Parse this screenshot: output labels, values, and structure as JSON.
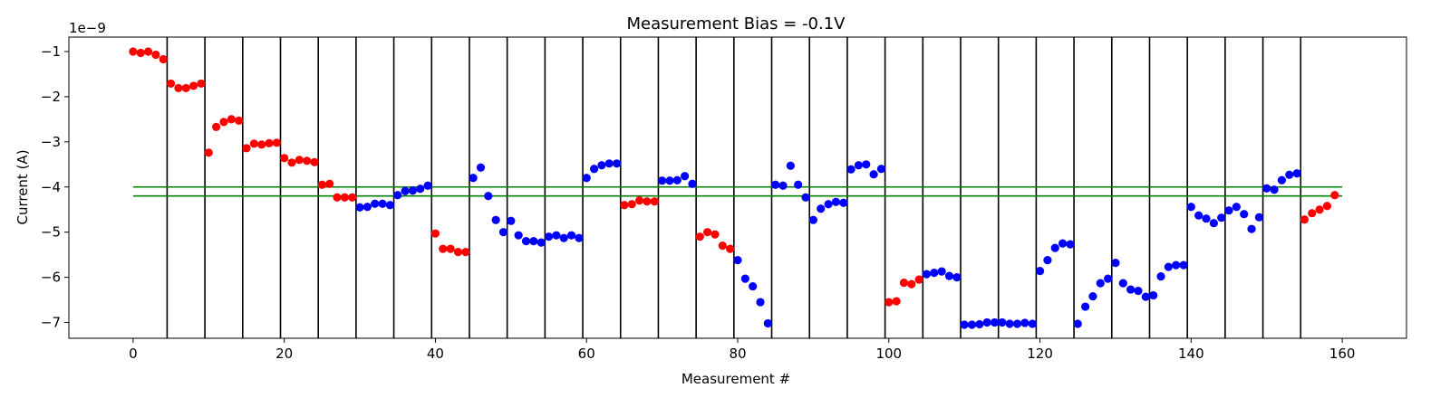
{
  "chart_data": {
    "type": "scatter",
    "title": "Measurement Bias = -0.1V",
    "xlabel": "Measurement #",
    "ylabel": "Current (A)",
    "y_scale_label": "1e−9",
    "xlim": [
      -8.5,
      168.5
    ],
    "ylim": [
      -7.35,
      -0.68
    ],
    "x_ticks": [
      0,
      20,
      40,
      60,
      80,
      100,
      120,
      140,
      160
    ],
    "x_tick_labels": [
      "0",
      "20",
      "40",
      "60",
      "80",
      "100",
      "120",
      "140",
      "160"
    ],
    "y_ticks": [
      -1,
      -2,
      -3,
      -4,
      -5,
      -6,
      -7
    ],
    "y_tick_labels": [
      "−1",
      "−2",
      "−3",
      "−4",
      "−5",
      "−6",
      "−7"
    ],
    "grid": false,
    "separators_x": [
      4.5,
      9.5,
      14.5,
      19.5,
      24.5,
      29.5,
      34.5,
      39.5,
      44.5,
      49.5,
      54.5,
      59.5,
      64.5,
      69.5,
      74.5,
      79.5,
      84.5,
      89.5,
      94.5,
      99.5,
      104.5,
      109.5,
      114.5,
      119.5,
      124.5,
      129.5,
      134.5,
      139.5,
      144.5,
      149.5,
      154.5
    ],
    "reference_lines": [
      {
        "y": -4.0,
        "x_range": [
          0,
          160
        ],
        "color": "#008000"
      },
      {
        "y": -4.2,
        "x_range": [
          0,
          160
        ],
        "color": "#008000"
      }
    ],
    "colors": {
      "red": "#ff0000",
      "blue": "#0000ff",
      "separator": "#000000"
    },
    "series": [
      {
        "color": "red",
        "x": [
          0,
          1,
          2,
          3,
          4
        ],
        "y": [
          -1.0,
          -1.03,
          -1.0,
          -1.07,
          -1.17
        ]
      },
      {
        "color": "red",
        "x": [
          5,
          6,
          7,
          8,
          9
        ],
        "y": [
          -1.71,
          -1.81,
          -1.81,
          -1.76,
          -1.71
        ]
      },
      {
        "color": "red",
        "x": [
          10,
          11,
          12,
          13,
          14
        ],
        "y": [
          -3.24,
          -2.67,
          -2.56,
          -2.5,
          -2.53
        ]
      },
      {
        "color": "red",
        "x": [
          15,
          16,
          17,
          18,
          19
        ],
        "y": [
          -3.14,
          -3.04,
          -3.06,
          -3.03,
          -3.02
        ]
      },
      {
        "color": "red",
        "x": [
          20,
          21,
          22,
          23,
          24
        ],
        "y": [
          -3.36,
          -3.46,
          -3.4,
          -3.42,
          -3.45
        ]
      },
      {
        "color": "red",
        "x": [
          25,
          26,
          27,
          28,
          29
        ],
        "y": [
          -3.95,
          -3.93,
          -4.23,
          -4.23,
          -4.23
        ]
      },
      {
        "color": "blue",
        "x": [
          30,
          31,
          32,
          33,
          34
        ],
        "y": [
          -4.45,
          -4.44,
          -4.37,
          -4.37,
          -4.4
        ]
      },
      {
        "color": "blue",
        "x": [
          35,
          36,
          37,
          38,
          39
        ],
        "y": [
          -4.18,
          -4.09,
          -4.08,
          -4.04,
          -3.97
        ]
      },
      {
        "color": "red",
        "x": [
          40,
          41,
          42,
          43,
          44
        ],
        "y": [
          -5.03,
          -5.37,
          -5.37,
          -5.44,
          -5.44
        ]
      },
      {
        "color": "blue",
        "x": [
          45,
          46,
          47,
          48,
          49
        ],
        "y": [
          -3.8,
          -3.57,
          -4.2,
          -4.73,
          -5.0
        ]
      },
      {
        "color": "blue",
        "x": [
          50,
          51,
          52,
          53,
          54
        ],
        "y": [
          -4.75,
          -5.07,
          -5.2,
          -5.2,
          -5.23
        ]
      },
      {
        "color": "blue",
        "x": [
          55,
          56,
          57,
          58,
          59
        ],
        "y": [
          -5.1,
          -5.07,
          -5.13,
          -5.07,
          -5.13
        ]
      },
      {
        "color": "blue",
        "x": [
          60,
          61,
          62,
          63,
          64
        ],
        "y": [
          -3.8,
          -3.6,
          -3.52,
          -3.48,
          -3.48
        ]
      },
      {
        "color": "red",
        "x": [
          65,
          66,
          67,
          68,
          69
        ],
        "y": [
          -4.4,
          -4.38,
          -4.3,
          -4.32,
          -4.32
        ]
      },
      {
        "color": "blue",
        "x": [
          70,
          71,
          72,
          73,
          74
        ],
        "y": [
          -3.86,
          -3.86,
          -3.85,
          -3.76,
          -3.93
        ]
      },
      {
        "color": "red",
        "x": [
          75,
          76,
          77,
          78,
          79
        ],
        "y": [
          -5.1,
          -5.0,
          -5.05,
          -5.3,
          -5.37
        ]
      },
      {
        "color": "blue",
        "x": [
          80,
          81,
          82,
          83,
          84
        ],
        "y": [
          -5.62,
          -6.03,
          -6.2,
          -6.55,
          -7.02
        ]
      },
      {
        "color": "blue",
        "x": [
          85,
          86,
          87,
          88,
          89
        ],
        "y": [
          -3.95,
          -3.97,
          -3.53,
          -3.95,
          -4.23
        ]
      },
      {
        "color": "blue",
        "x": [
          90,
          91,
          92,
          93,
          94
        ],
        "y": [
          -4.73,
          -4.48,
          -4.38,
          -4.33,
          -4.35
        ]
      },
      {
        "color": "blue",
        "x": [
          95,
          96,
          97,
          98,
          99
        ],
        "y": [
          -3.61,
          -3.52,
          -3.5,
          -3.72,
          -3.6
        ]
      },
      {
        "color": "red",
        "x": [
          100,
          101,
          102,
          103,
          104
        ],
        "y": [
          -6.55,
          -6.53,
          -6.12,
          -6.15,
          -6.05
        ]
      },
      {
        "color": "blue",
        "x": [
          105,
          106,
          107,
          108,
          109
        ],
        "y": [
          -5.93,
          -5.9,
          -5.87,
          -5.97,
          -6.0
        ]
      },
      {
        "color": "blue",
        "x": [
          110,
          111,
          112,
          113,
          114
        ],
        "y": [
          -7.05,
          -7.05,
          -7.04,
          -7.0,
          -7.0
        ]
      },
      {
        "color": "blue",
        "x": [
          115,
          116,
          117,
          118,
          119
        ],
        "y": [
          -7.0,
          -7.03,
          -7.03,
          -7.01,
          -7.03
        ]
      },
      {
        "color": "blue",
        "x": [
          120,
          121,
          122,
          123,
          124
        ],
        "y": [
          -5.86,
          -5.62,
          -5.35,
          -5.25,
          -5.27
        ]
      },
      {
        "color": "blue",
        "x": [
          125,
          126,
          127,
          128,
          129
        ],
        "y": [
          -7.03,
          -6.65,
          -6.42,
          -6.13,
          -6.03
        ]
      },
      {
        "color": "blue",
        "x": [
          130,
          131,
          132,
          133,
          134
        ],
        "y": [
          -5.68,
          -6.13,
          -6.27,
          -6.3,
          -6.43
        ]
      },
      {
        "color": "blue",
        "x": [
          135,
          136,
          137,
          138,
          139
        ],
        "y": [
          -6.4,
          -5.98,
          -5.77,
          -5.73,
          -5.73
        ]
      },
      {
        "color": "blue",
        "x": [
          140,
          141,
          142,
          143,
          144
        ],
        "y": [
          -4.44,
          -4.63,
          -4.7,
          -4.8,
          -4.68
        ]
      },
      {
        "color": "blue",
        "x": [
          145,
          146,
          147,
          148,
          149
        ],
        "y": [
          -4.52,
          -4.44,
          -4.6,
          -4.93,
          -4.67
        ]
      },
      {
        "color": "blue",
        "x": [
          150,
          151,
          152,
          153,
          154
        ],
        "y": [
          -4.03,
          -4.06,
          -3.85,
          -3.73,
          -3.7
        ]
      },
      {
        "color": "red",
        "x": [
          155,
          156,
          157,
          158,
          159
        ],
        "y": [
          -4.72,
          -4.58,
          -4.5,
          -4.42,
          -4.18
        ]
      }
    ]
  }
}
